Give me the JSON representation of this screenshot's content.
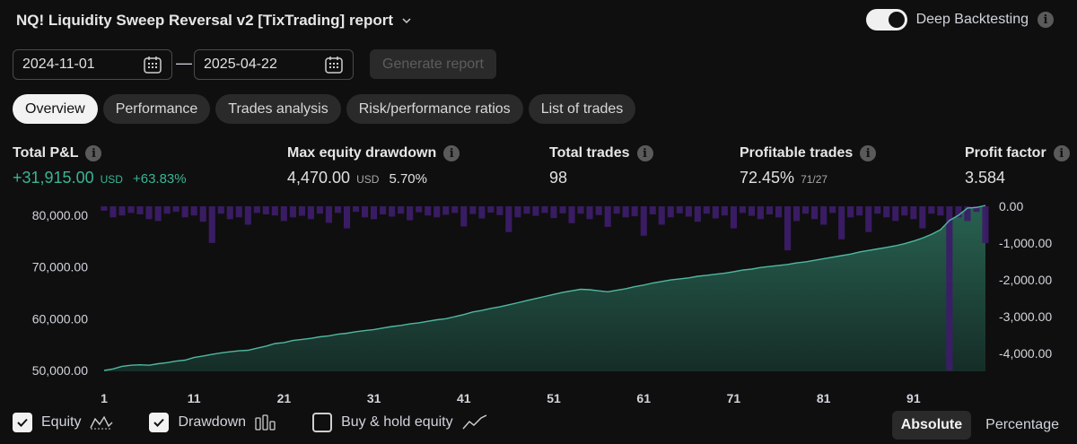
{
  "header": {
    "title": "NQ! Liquidity Sweep Reversal v2 [TixTrading] report"
  },
  "deep_backtesting": {
    "label": "Deep Backtesting",
    "enabled": true
  },
  "date_range": {
    "start": "2024-11-01",
    "separator": "—",
    "end": "2025-04-22"
  },
  "generate_button": {
    "label": "Generate report"
  },
  "tabs": [
    {
      "label": "Overview",
      "active": true
    },
    {
      "label": "Performance",
      "active": false
    },
    {
      "label": "Trades analysis",
      "active": false
    },
    {
      "label": "Risk/performance ratios",
      "active": false
    },
    {
      "label": "List of trades",
      "active": false
    }
  ],
  "stats": {
    "total_pnl": {
      "label": "Total P&L",
      "value": "+31,915.00",
      "unit": "USD",
      "pct": "+63.83%"
    },
    "max_drawdown": {
      "label": "Max equity drawdown",
      "value": "4,470.00",
      "unit": "USD",
      "pct": "5.70%"
    },
    "total_trades": {
      "label": "Total trades",
      "value": "98"
    },
    "profitable_trades": {
      "label": "Profitable trades",
      "value": "72.45%",
      "ratio": "71/27"
    },
    "profit_factor": {
      "label": "Profit factor",
      "value": "3.584"
    }
  },
  "colors": {
    "equity_line": "#4fb8a0",
    "drawdown_bar": "#3c1d68",
    "positive": "#38b695",
    "background": "#0f0f0f"
  },
  "chart_data": {
    "type": "line",
    "title": "",
    "x": [
      1,
      2,
      3,
      4,
      5,
      6,
      7,
      8,
      9,
      10,
      11,
      12,
      13,
      14,
      15,
      16,
      17,
      18,
      19,
      20,
      21,
      22,
      23,
      24,
      25,
      26,
      27,
      28,
      29,
      30,
      31,
      32,
      33,
      34,
      35,
      36,
      37,
      38,
      39,
      40,
      41,
      42,
      43,
      44,
      45,
      46,
      47,
      48,
      49,
      50,
      51,
      52,
      53,
      54,
      55,
      56,
      57,
      58,
      59,
      60,
      61,
      62,
      63,
      64,
      65,
      66,
      67,
      68,
      69,
      70,
      71,
      72,
      73,
      74,
      75,
      76,
      77,
      78,
      79,
      80,
      81,
      82,
      83,
      84,
      85,
      86,
      87,
      88,
      89,
      90,
      91,
      92,
      93,
      94,
      95,
      96,
      97,
      98,
      99
    ],
    "x_ticks": [
      "1",
      "11",
      "21",
      "31",
      "41",
      "51",
      "61",
      "71",
      "81",
      "91"
    ],
    "y_left_ticks": [
      "80,000.00",
      "70,000.00",
      "60,000.00",
      "50,000.00"
    ],
    "y_left_range": [
      50000,
      80000
    ],
    "y_right_ticks": [
      "0.00",
      "-1,000.00",
      "-2,000.00",
      "-3,000.00",
      "-4,000.00"
    ],
    "y_right_range": [
      -4470,
      0
    ],
    "series": [
      {
        "name": "Equity",
        "axis": "left",
        "type": "area-line",
        "values": [
          50000,
          50300,
          50800,
          51000,
          51100,
          51000,
          51300,
          51500,
          51800,
          52000,
          52500,
          52800,
          53100,
          53400,
          53600,
          53800,
          53900,
          54300,
          54700,
          55200,
          55400,
          55800,
          56000,
          56200,
          56500,
          56700,
          57000,
          57200,
          57500,
          57700,
          57900,
          58200,
          58500,
          58700,
          59000,
          59200,
          59500,
          59800,
          60000,
          60400,
          60800,
          61300,
          61600,
          62000,
          62300,
          62700,
          63100,
          63500,
          63900,
          64300,
          64700,
          65100,
          65400,
          65700,
          65600,
          65400,
          65200,
          65500,
          65800,
          66200,
          66500,
          66900,
          67200,
          67500,
          67700,
          67900,
          68200,
          68400,
          68600,
          68800,
          69100,
          69400,
          69600,
          69900,
          70100,
          70300,
          70500,
          70800,
          71000,
          71300,
          71600,
          71900,
          72200,
          72500,
          72900,
          73200,
          73500,
          73800,
          74100,
          74500,
          75000,
          75600,
          76300,
          77200,
          79000,
          80000,
          81400,
          81500,
          81915
        ]
      },
      {
        "name": "Drawdown",
        "axis": "right",
        "type": "bar",
        "values": [
          -120,
          -300,
          -250,
          -180,
          -220,
          -350,
          -400,
          -200,
          -150,
          -300,
          -250,
          -420,
          -1000,
          -200,
          -350,
          -300,
          -500,
          -180,
          -220,
          -250,
          -400,
          -300,
          -260,
          -350,
          -200,
          -450,
          -180,
          -600,
          -150,
          -300,
          -350,
          -220,
          -280,
          -200,
          -380,
          -160,
          -250,
          -300,
          -230,
          -180,
          -550,
          -210,
          -330,
          -170,
          -240,
          -700,
          -300,
          -200,
          -260,
          -180,
          -320,
          -190,
          -460,
          -200,
          -350,
          -240,
          -560,
          -200,
          -300,
          -270,
          -800,
          -220,
          -500,
          -300,
          -190,
          -280,
          -420,
          -200,
          -330,
          -250,
          -600,
          -180,
          -260,
          -350,
          -220,
          -300,
          -1200,
          -400,
          -200,
          -350,
          -500,
          -180,
          -900,
          -300,
          -250,
          -700,
          -200,
          -300,
          -400,
          -250,
          -350,
          -600,
          -200,
          -250,
          -4470,
          -300,
          -400,
          -150,
          -1000
        ]
      }
    ],
    "legend": [
      {
        "label": "Equity",
        "checked": true
      },
      {
        "label": "Drawdown",
        "checked": true
      },
      {
        "label": "Buy & hold equity",
        "checked": false
      }
    ]
  },
  "view_mode": {
    "options": [
      "Absolute",
      "Percentage"
    ],
    "selected": "Absolute"
  }
}
